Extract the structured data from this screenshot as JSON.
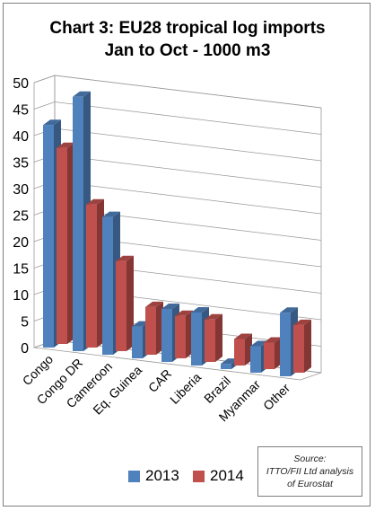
{
  "chart_data": {
    "type": "bar",
    "title": "Chart 3: EU28 tropical log imports",
    "subtitle": "Jan to Oct - 1000 m3",
    "categories": [
      "Congo",
      "Congo DR",
      "Cameroon",
      "Eq. Guinea",
      "CAR",
      "Liberia",
      "Brazil",
      "Myanmar",
      "Other"
    ],
    "series": [
      {
        "name": "2013",
        "color": "#4f81bd",
        "values": [
          42,
          48,
          26,
          6,
          10,
          10,
          1,
          5,
          12
        ]
      },
      {
        "name": "2014",
        "color": "#c0504d",
        "values": [
          37,
          27,
          17,
          9,
          8,
          8,
          5,
          5,
          9
        ]
      }
    ],
    "y_ticks": [
      "0",
      "5",
      "10",
      "15",
      "20",
      "25",
      "30",
      "35",
      "40",
      "45",
      "50"
    ],
    "ylim": [
      0,
      50
    ],
    "grid": true,
    "legend_position": "bottom-left"
  },
  "source_note": "Source:\nITTO/FII Ltd analysis\nof Eurostat"
}
